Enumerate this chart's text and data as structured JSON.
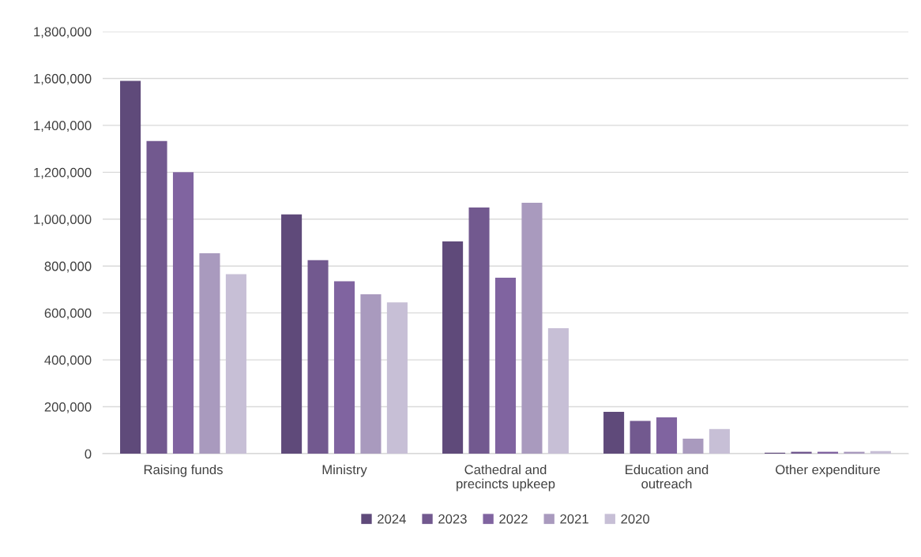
{
  "chart_data": {
    "type": "bar",
    "categories": [
      "Raising funds",
      "Ministry",
      "Cathedral and\nprecincts upkeep",
      "Education and\noutreach",
      "Other expenditure"
    ],
    "series": [
      {
        "name": "2024",
        "color": "#5f4a7a",
        "values": [
          1590000,
          1020000,
          905000,
          178000,
          4000
        ]
      },
      {
        "name": "2023",
        "color": "#72598f",
        "values": [
          1333000,
          825000,
          1050000,
          140000,
          8000
        ]
      },
      {
        "name": "2022",
        "color": "#8064a0",
        "values": [
          1200000,
          735000,
          750000,
          155000,
          8000
        ]
      },
      {
        "name": "2021",
        "color": "#a99abe",
        "values": [
          855000,
          680000,
          1070000,
          64000,
          8000
        ]
      },
      {
        "name": "2020",
        "color": "#c7bfd6",
        "values": [
          765000,
          645000,
          535000,
          105000,
          11000
        ]
      }
    ],
    "ylim": [
      0,
      1800000
    ],
    "yticks": [
      {
        "value": 0,
        "label": "0"
      },
      {
        "value": 200000,
        "label": "200,000"
      },
      {
        "value": 400000,
        "label": "400,000"
      },
      {
        "value": 600000,
        "label": "600,000"
      },
      {
        "value": 800000,
        "label": "800,000"
      },
      {
        "value": 1000000,
        "label": "1,000,000"
      },
      {
        "value": 1200000,
        "label": "1,200,000"
      },
      {
        "value": 1400000,
        "label": "1,400,000"
      },
      {
        "value": 1600000,
        "label": "1,600,000"
      },
      {
        "value": 1800000,
        "label": "1,800,000"
      }
    ],
    "grid": "y",
    "legend": "bottom"
  }
}
